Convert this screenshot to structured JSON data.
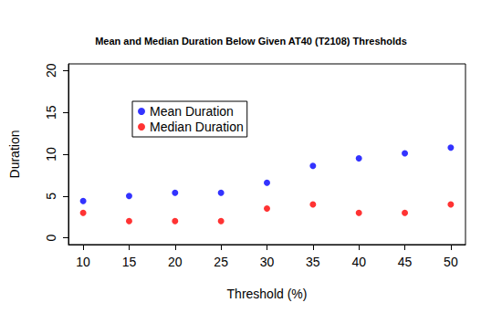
{
  "chart_data": {
    "type": "scatter",
    "title": "Mean and Median Duration Below Given AT40 (T2108) Thresholds",
    "x_label": "Threshold (%)",
    "y_label": "Duration",
    "x": [
      10,
      15,
      20,
      25,
      30,
      35,
      40,
      45,
      50
    ],
    "series": [
      {
        "name": "Mean Duration",
        "color": "#0000ff",
        "marker": "circle",
        "values": [
          4.4,
          5.0,
          5.4,
          5.4,
          6.6,
          8.6,
          9.5,
          10.1,
          10.8
        ]
      },
      {
        "name": "Median Duration",
        "color": "#ff0000",
        "marker": "circle",
        "values": [
          3,
          2,
          2,
          2,
          3.5,
          4,
          3,
          3,
          4
        ]
      }
    ],
    "xlim": [
      8.4,
      51.6
    ],
    "xticks": [
      10,
      15,
      20,
      25,
      30,
      35,
      40,
      45,
      50
    ],
    "ylim": [
      -0.8,
      20.8
    ],
    "yticks": [
      0,
      5,
      10,
      15,
      20
    ],
    "grid": false,
    "legend": "top-left"
  }
}
